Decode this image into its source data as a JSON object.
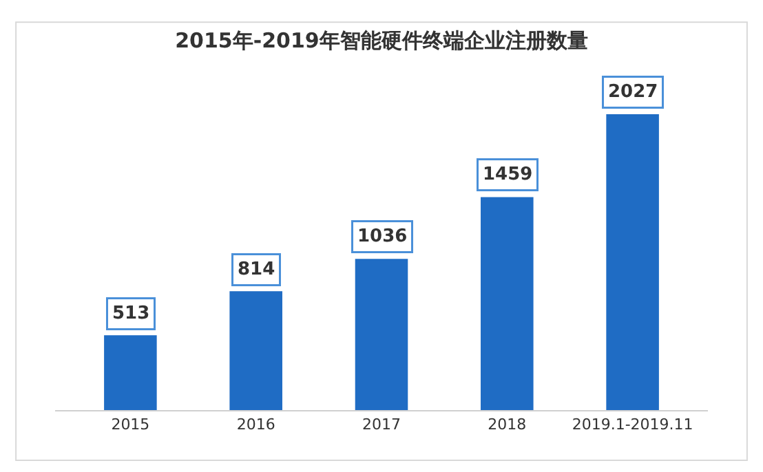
{
  "chart_data": {
    "type": "bar",
    "title": "2015年-2019年智能硬件终端企业注册数量",
    "categories": [
      "2015",
      "2016",
      "2017",
      "2018",
      "2019.1-2019.11"
    ],
    "values": [
      513,
      814,
      1036,
      1459,
      2027
    ],
    "color": "#1f6cc4",
    "data_labels": true,
    "legend": false
  }
}
